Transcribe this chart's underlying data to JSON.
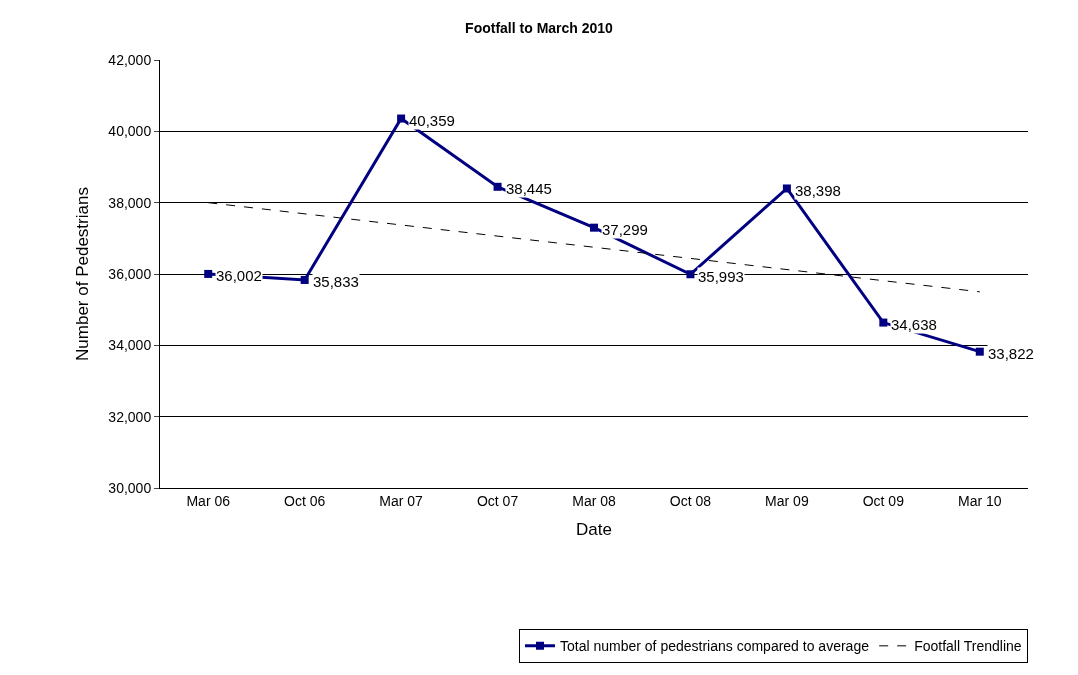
{
  "chart_data": {
    "type": "line",
    "title": "Footfall to March 2010",
    "xlabel": "Date",
    "ylabel": "Number of Pedestrians",
    "categories": [
      "Mar 06",
      "Oct 06",
      "Mar 07",
      "Oct 07",
      "Mar 08",
      "Oct 08",
      "Mar 09",
      "Oct 09",
      "Mar 10"
    ],
    "ylim": [
      30000,
      42000
    ],
    "yticks": [
      {
        "value": 30000,
        "label": "30,000"
      },
      {
        "value": 32000,
        "label": "32,000"
      },
      {
        "value": 34000,
        "label": "34,000"
      },
      {
        "value": 36000,
        "label": "36,000"
      },
      {
        "value": 38000,
        "label": "38,000"
      },
      {
        "value": 40000,
        "label": "40,000"
      },
      {
        "value": 42000,
        "label": "42,000"
      }
    ],
    "series": [
      {
        "name": "Total number of pedestrians compared to average",
        "color": "#000080",
        "values": [
          36002,
          35833,
          40359,
          38445,
          37299,
          35993,
          38398,
          34638,
          33822
        ],
        "value_labels": [
          "36,002",
          "35,833",
          "40,359",
          "38,445",
          "37,299",
          "35,993",
          "38,398",
          "34,638",
          "33,822"
        ],
        "marker": "square",
        "line_style": "solid"
      },
      {
        "name": "Footfall Trendline",
        "type": "line",
        "color": "#000000",
        "x": [
          "Mar 06",
          "Mar 10"
        ],
        "values": [
          38000,
          35500
        ],
        "marker": "none",
        "line_style": "dashed"
      }
    ],
    "grid": "y",
    "legend": "bottom right"
  }
}
